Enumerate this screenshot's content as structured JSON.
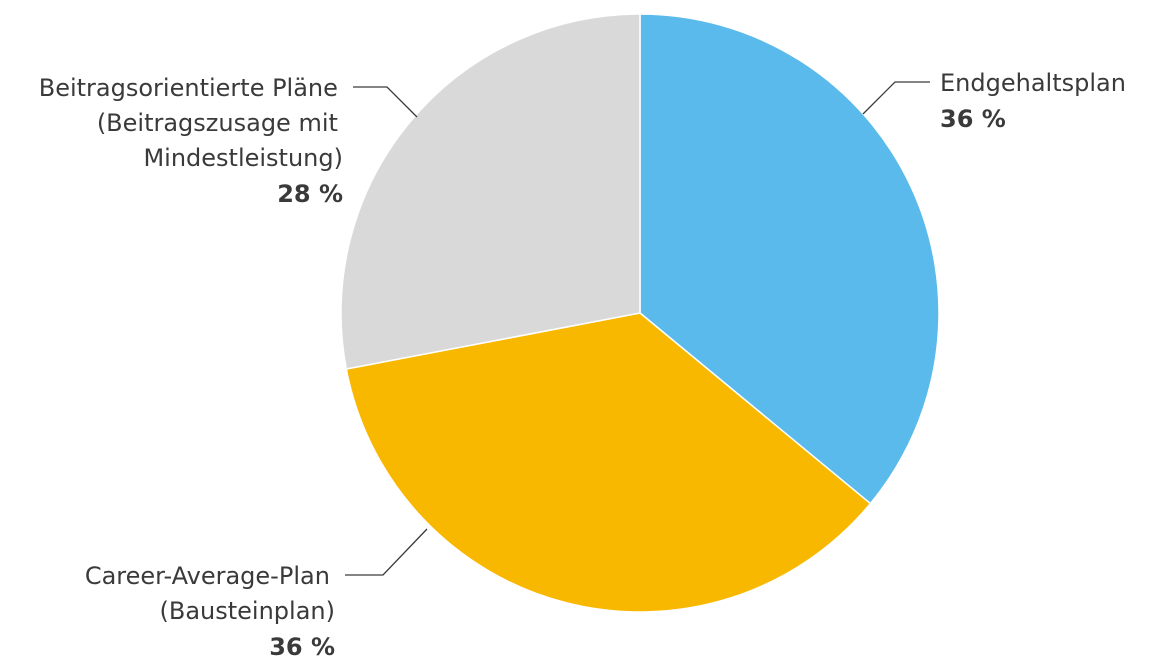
{
  "chart_data": {
    "type": "pie",
    "title": "",
    "slices": [
      {
        "name": "Endgehaltsplan",
        "label_lines": [
          "Endgehaltsplan"
        ],
        "value": 36,
        "value_label": "36 %",
        "color": "#5bbaec"
      },
      {
        "name": "Career-Average-Plan (Bausteinplan)",
        "label_lines": [
          "Career-Average-Plan",
          "(Bausteinplan)"
        ],
        "value": 36,
        "value_label": "36 %",
        "color": "#f9b800"
      },
      {
        "name": "Beitragsorientierte Pläne (Beitragszusage mit Mindestleistung)",
        "label_lines": [
          "Beitragsorientierte Pläne",
          "(Beitragszusage mit",
          "Mindestleistung)"
        ],
        "value": 28,
        "value_label": "28 %",
        "color": "#d9d9d9"
      }
    ],
    "start_angle": "12 o'clock",
    "direction": "clockwise",
    "legend": "none (direct labels with leader lines)"
  }
}
